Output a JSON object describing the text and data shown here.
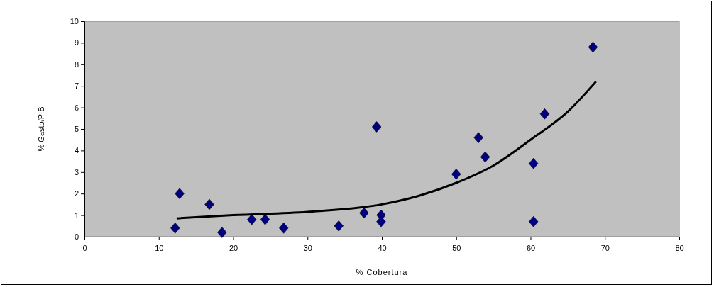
{
  "chart_data": {
    "type": "scatter",
    "xlabel": "% Cobertura",
    "ylabel": "% Gasto/PIB",
    "xlim": [
      0,
      80
    ],
    "ylim": [
      0,
      10
    ],
    "xticks": [
      0,
      10,
      20,
      30,
      40,
      50,
      60,
      70,
      80
    ],
    "yticks": [
      0,
      1,
      2,
      3,
      4,
      5,
      6,
      7,
      8,
      9,
      10
    ],
    "grid": false,
    "marker": "diamond",
    "series": [
      {
        "color": "#000080",
        "x": [
          12.2,
          12.8,
          16.8,
          18.5,
          22.5,
          24.3,
          26.8,
          34.2,
          37.6,
          39.3,
          39.9,
          39.9,
          50.0,
          53.0,
          53.9,
          60.4,
          60.4,
          61.9,
          68.4
        ],
        "values": [
          0.4,
          2.0,
          1.5,
          0.2,
          0.8,
          0.8,
          0.4,
          0.5,
          1.1,
          5.1,
          1.0,
          0.7,
          2.9,
          4.6,
          3.7,
          3.4,
          0.7,
          5.7,
          8.8
        ]
      },
      {
        "type": "line",
        "color": "#000000",
        "marker": "none",
        "x": [
          12.4,
          20,
          30,
          40,
          45,
          50,
          55,
          60,
          65,
          68.8
        ],
        "values": [
          0.85,
          1.0,
          1.15,
          1.5,
          1.9,
          2.5,
          3.3,
          4.5,
          5.8,
          7.2
        ]
      }
    ]
  }
}
